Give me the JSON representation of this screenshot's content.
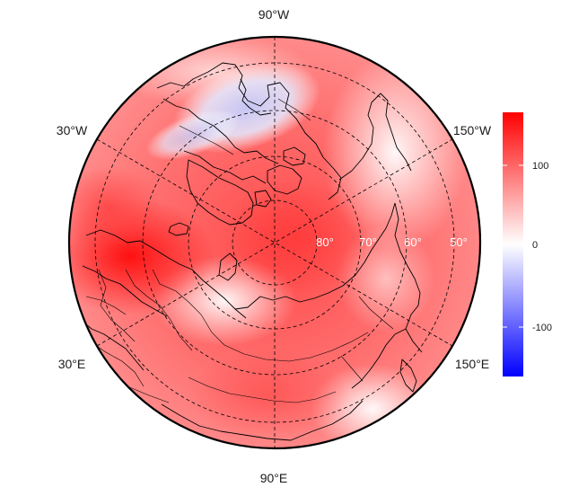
{
  "projection": "north-polar-stereographic",
  "longitude_labels": {
    "top": "90°W",
    "upper_left": "30°W",
    "upper_right": "150°W",
    "lower_left": "30°E",
    "lower_right": "150°E",
    "bottom": "90°E"
  },
  "latitude_labels": [
    "80°",
    "70°",
    "60°",
    "50°"
  ],
  "colorbar": {
    "ticks": [
      "100",
      "0",
      "-100"
    ],
    "range": [
      -160,
      160
    ],
    "colors": {
      "high": "#ff0000",
      "mid": "#ffffff",
      "low": "#0000ff"
    }
  },
  "colors": {
    "field_base": "#ff6a6a",
    "positive_core": "#ff2a2a",
    "negative_anomaly": "#c9c9f5",
    "coastline": "#000000"
  }
}
